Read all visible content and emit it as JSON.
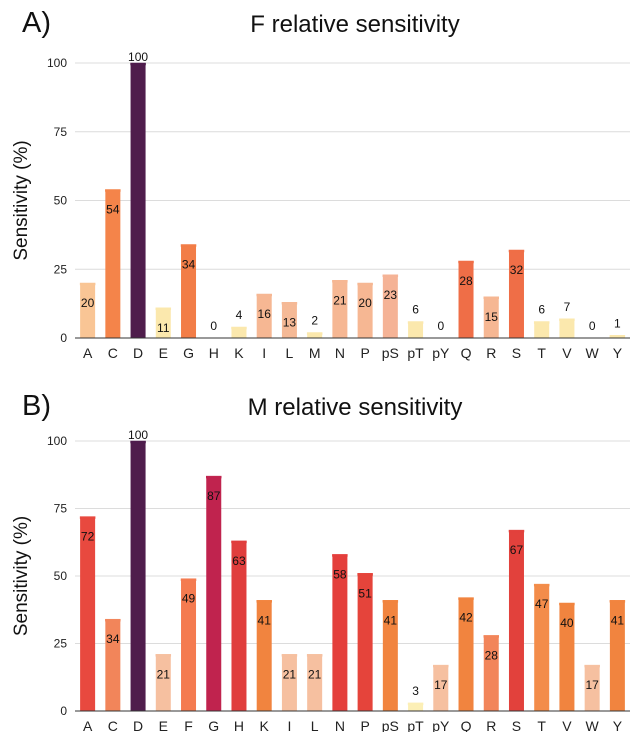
{
  "chart_data": [
    {
      "type": "bar",
      "panel_label": "A)",
      "title": "F relative sensitivity",
      "xlabel": "",
      "ylabel": "Sensitivity (%)",
      "ylim": [
        0,
        100
      ],
      "yticks": [
        0,
        25,
        50,
        75,
        100
      ],
      "grid": true,
      "categories": [
        "A",
        "C",
        "D",
        "E",
        "G",
        "H",
        "K",
        "I",
        "L",
        "M",
        "N",
        "P",
        "pS",
        "pT",
        "pY",
        "Q",
        "R",
        "S",
        "T",
        "V",
        "W",
        "Y"
      ],
      "values": [
        20,
        54,
        100,
        11,
        34,
        0,
        4,
        16,
        13,
        2,
        21,
        20,
        23,
        6,
        0,
        28,
        15,
        32,
        6,
        7,
        0,
        1
      ],
      "colors": [
        "#f9c595",
        "#f4844a",
        "#4f1d4c",
        "#fbe8ad",
        "#f27d47",
        "#fbe8ad",
        "#fbe8ad",
        "#f6b793",
        "#f5b996",
        "#fbe8ad",
        "#f6b793",
        "#f6b793",
        "#f5b396",
        "#fbe8ad",
        "#fbe8ad",
        "#ef6e47",
        "#f6b793",
        "#ef6e47",
        "#fbe8ad",
        "#fbe8ad",
        "#fbe8ad",
        "#fbe8ad"
      ]
    },
    {
      "type": "bar",
      "panel_label": "B)",
      "title": "M relative sensitivity",
      "xlabel": "",
      "ylabel": "Sensitivity (%)",
      "ylim": [
        0,
        100
      ],
      "yticks": [
        0,
        25,
        50,
        75,
        100
      ],
      "grid": true,
      "categories": [
        "A",
        "C",
        "D",
        "E",
        "F",
        "G",
        "H",
        "K",
        "I",
        "L",
        "N",
        "P",
        "pS",
        "pT",
        "pY",
        "Q",
        "R",
        "S",
        "T",
        "V",
        "W",
        "Y"
      ],
      "values": [
        72,
        34,
        100,
        21,
        49,
        87,
        63,
        41,
        21,
        21,
        58,
        51,
        41,
        3,
        17,
        42,
        28,
        67,
        47,
        40,
        17,
        41
      ],
      "colors": [
        "#e8493f",
        "#f2855a",
        "#4f1d4c",
        "#f6c0a0",
        "#f47b50",
        "#c0234e",
        "#e03e3d",
        "#f1843f",
        "#f6c0a0",
        "#f6c0a0",
        "#e43f3c",
        "#e5443b",
        "#f1843f",
        "#fcefb6",
        "#f6c0a0",
        "#f1843f",
        "#f2855a",
        "#e2413c",
        "#f38c4a",
        "#f1843f",
        "#f6c0a0",
        "#f1843f"
      ]
    }
  ]
}
